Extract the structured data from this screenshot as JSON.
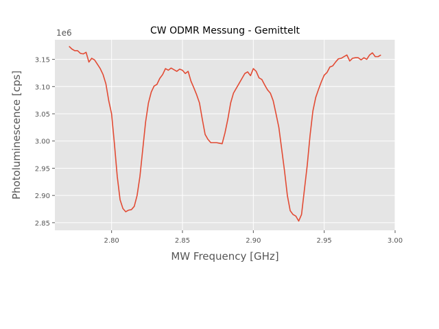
{
  "chart_data": {
    "type": "line",
    "title": "CW ODMR Messung - Gemittelt",
    "xlabel": "MW Frequency [GHz]",
    "ylabel": "Photoluminescence [cps]",
    "y_offset_label": "1e6",
    "xlim": [
      2.76,
      3.0
    ],
    "ylim": [
      2.836,
      3.186
    ],
    "x_ticks": [
      2.8,
      2.85,
      2.9,
      2.95,
      3.0
    ],
    "x_tick_labels": [
      "2.80",
      "2.85",
      "2.90",
      "2.95",
      "3.00"
    ],
    "y_ticks": [
      2.85,
      2.9,
      2.95,
      3.0,
      3.05,
      3.1,
      3.15
    ],
    "y_tick_labels": [
      "2.85",
      "2.90",
      "2.95",
      "3.00",
      "3.05",
      "3.10",
      "3.15"
    ],
    "grid": true,
    "colors": {
      "plot_bg": "#e5e5e5",
      "grid": "#ffffff",
      "line": "#e24a33"
    },
    "series": [
      {
        "x": [
          2.77,
          2.772,
          2.774,
          2.776,
          2.778,
          2.78,
          2.782,
          2.784,
          2.786,
          2.788,
          2.79,
          2.792,
          2.794,
          2.796,
          2.798,
          2.8,
          2.802,
          2.804,
          2.806,
          2.808,
          2.81,
          2.812,
          2.814,
          2.816,
          2.818,
          2.82,
          2.822,
          2.824,
          2.826,
          2.828,
          2.83,
          2.832,
          2.834,
          2.836,
          2.838,
          2.84,
          2.842,
          2.844,
          2.846,
          2.848,
          2.85,
          2.852,
          2.854,
          2.856,
          2.858,
          2.86,
          2.862,
          2.864,
          2.866,
          2.868,
          2.87,
          2.872,
          2.874,
          2.876,
          2.878,
          2.88,
          2.882,
          2.884,
          2.886,
          2.888,
          2.89,
          2.892,
          2.894,
          2.896,
          2.898,
          2.9,
          2.902,
          2.904,
          2.906,
          2.908,
          2.91,
          2.912,
          2.914,
          2.916,
          2.918,
          2.92,
          2.922,
          2.924,
          2.926,
          2.928,
          2.93,
          2.932,
          2.934,
          2.936,
          2.938,
          2.94,
          2.942,
          2.944,
          2.946,
          2.948,
          2.95,
          2.952,
          2.954,
          2.956,
          2.958,
          2.96,
          2.962,
          2.964,
          2.966,
          2.968,
          2.97,
          2.972,
          2.974,
          2.976,
          2.978,
          2.98,
          2.982,
          2.984,
          2.986,
          2.988,
          2.99
        ],
        "y": [
          3.174,
          3.169,
          3.166,
          3.166,
          3.161,
          3.16,
          3.163,
          3.145,
          3.152,
          3.149,
          3.141,
          3.133,
          3.122,
          3.105,
          3.074,
          3.05,
          2.995,
          2.935,
          2.892,
          2.876,
          2.87,
          2.873,
          2.874,
          2.88,
          2.9,
          2.935,
          2.985,
          3.035,
          3.07,
          3.09,
          3.101,
          3.104,
          3.115,
          3.122,
          3.133,
          3.13,
          3.134,
          3.131,
          3.128,
          3.132,
          3.13,
          3.124,
          3.128,
          3.11,
          3.098,
          3.085,
          3.07,
          3.04,
          3.012,
          3.003,
          2.997,
          2.997,
          2.997,
          2.996,
          2.995,
          3.015,
          3.04,
          3.07,
          3.088,
          3.097,
          3.106,
          3.115,
          3.124,
          3.127,
          3.12,
          3.133,
          3.128,
          3.116,
          3.113,
          3.103,
          3.094,
          3.088,
          3.074,
          3.05,
          3.025,
          2.985,
          2.945,
          2.9,
          2.872,
          2.865,
          2.862,
          2.853,
          2.865,
          2.91,
          2.955,
          3.01,
          3.055,
          3.08,
          3.095,
          3.109,
          3.121,
          3.126,
          3.136,
          3.138,
          3.145,
          3.151,
          3.152,
          3.155,
          3.158,
          3.147,
          3.152,
          3.153,
          3.153,
          3.149,
          3.153,
          3.15,
          3.158,
          3.162,
          3.155,
          3.155,
          3.158
        ]
      }
    ]
  }
}
